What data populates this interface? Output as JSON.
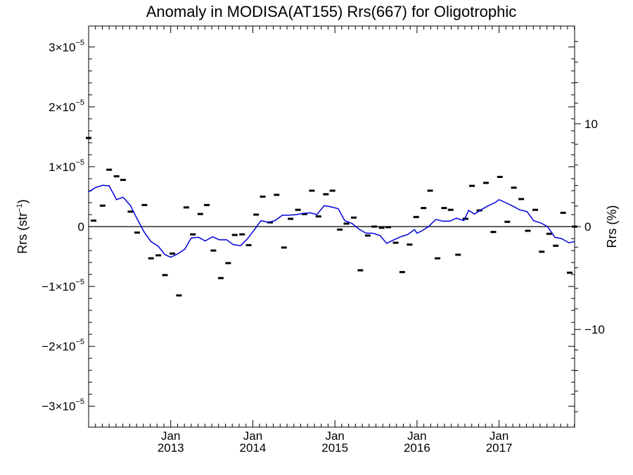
{
  "chart_data": {
    "type": "scatter",
    "title": "Anomaly in MODISA(AT155) Rrs(667) for Oligotrophic",
    "ylabel_left": {
      "base": "Rrs (str",
      "sup": "−1",
      "close": ")"
    },
    "ylabel_right": "Rrs (%)",
    "xlim": [
      2012.0,
      2017.92
    ],
    "ylim_left": [
      -3.35e-05,
      3.35e-05
    ],
    "ylim_right": [
      -19.5,
      19.5
    ],
    "x_ticks": [
      {
        "x": 2013.0,
        "month": "Jan",
        "year": "2013"
      },
      {
        "x": 2014.0,
        "month": "Jan",
        "year": "2014"
      },
      {
        "x": 2015.0,
        "month": "Jan",
        "year": "2015"
      },
      {
        "x": 2016.0,
        "month": "Jan",
        "year": "2016"
      },
      {
        "x": 2017.0,
        "month": "Jan",
        "year": "2017"
      }
    ],
    "y_ticks_left": [
      {
        "value": 3e-05,
        "mantissa": "3×10",
        "exp": "−5"
      },
      {
        "value": 2e-05,
        "mantissa": "2×10",
        "exp": "−5"
      },
      {
        "value": 1e-05,
        "mantissa": "1×10",
        "exp": "−5"
      },
      {
        "value": 0,
        "mantissa": "0",
        "exp": ""
      },
      {
        "value": -1e-05,
        "mantissa": "−1×10",
        "exp": "−5"
      },
      {
        "value": -2e-05,
        "mantissa": "−2×10",
        "exp": "−5"
      },
      {
        "value": -3e-05,
        "mantissa": "−3×10",
        "exp": "−5"
      }
    ],
    "y_ticks_right": [
      {
        "value": 10,
        "label": "10"
      },
      {
        "value": 0,
        "label": "0"
      },
      {
        "value": -10,
        "label": "−10"
      }
    ],
    "zero_line": 0,
    "series": [
      {
        "kind": "points",
        "color": "#000000",
        "x": [
          2012.0,
          2012.06,
          2012.17,
          2012.25,
          2012.34,
          2012.42,
          2012.51,
          2012.59,
          2012.68,
          2012.76,
          2012.85,
          2012.93,
          2013.02,
          2013.1,
          2013.19,
          2013.27,
          2013.36,
          2013.44,
          2013.52,
          2013.61,
          2013.7,
          2013.78,
          2013.87,
          2013.95,
          2014.04,
          2014.12,
          2014.21,
          2014.29,
          2014.38,
          2014.46,
          2014.55,
          2014.63,
          2014.72,
          2014.8,
          2014.89,
          2014.97,
          2015.06,
          2015.14,
          2015.23,
          2015.31,
          2015.4,
          2015.48,
          2015.57,
          2015.65,
          2015.74,
          2015.82,
          2015.91,
          2015.99,
          2016.08,
          2016.16,
          2016.25,
          2016.33,
          2016.41,
          2016.5,
          2016.59,
          2016.67,
          2016.76,
          2016.84,
          2016.93,
          2017.01,
          2017.1,
          2017.18,
          2017.27,
          2017.35,
          2017.44,
          2017.52,
          2017.61,
          2017.69,
          2017.78,
          2017.86,
          2017.92
        ],
        "y": [
          1.48e-05,
          1e-06,
          3.5e-06,
          9.5e-06,
          8.4e-06,
          7.8e-06,
          2.5e-06,
          -1e-06,
          3.6e-06,
          -5.3e-06,
          -4.8e-06,
          -8.1e-06,
          -4.5e-06,
          -1.15e-05,
          3.2e-06,
          -1.3e-06,
          2.1e-06,
          3.6e-06,
          -4e-06,
          -8.6e-06,
          -6.1e-06,
          -1.4e-06,
          -1.3e-06,
          -3.1e-06,
          2e-06,
          5e-06,
          7e-07,
          5.3e-06,
          -3.5e-06,
          1.3e-06,
          2.8e-06,
          2.1e-06,
          6e-06,
          1.7e-06,
          5.4e-06,
          6e-06,
          -5e-07,
          5e-07,
          1.5e-06,
          -7.3e-06,
          -1.5e-06,
          0.0,
          -2e-07,
          -1e-07,
          -2.7e-06,
          -7.6e-06,
          -3e-06,
          1.6e-06,
          3.1e-06,
          6e-06,
          -5.3e-06,
          3.1e-06,
          2.8e-06,
          -4.7e-06,
          1.3e-06,
          6.8e-06,
          2.7e-06,
          7.3e-06,
          -9e-07,
          8.3e-06,
          8e-07,
          6.5e-06,
          4.6e-06,
          -7e-07,
          2.8e-06,
          -4.2e-06,
          -1.2e-06,
          -3.2e-06,
          2.3e-06,
          -7.7e-06,
          0.0
        ]
      },
      {
        "kind": "line",
        "color": "#0000dd",
        "x": [
          2012.0,
          2012.08,
          2012.17,
          2012.25,
          2012.34,
          2012.42,
          2012.51,
          2012.59,
          2012.68,
          2012.76,
          2012.85,
          2012.93,
          2013.0,
          2013.08,
          2013.17,
          2013.25,
          2013.34,
          2013.42,
          2013.51,
          2013.59,
          2013.68,
          2013.76,
          2013.85,
          2013.93,
          2014.02,
          2014.1,
          2014.19,
          2014.27,
          2014.36,
          2014.44,
          2014.53,
          2014.61,
          2014.7,
          2014.78,
          2014.87,
          2014.95,
          2015.04,
          2015.12,
          2015.21,
          2015.29,
          2015.38,
          2015.46,
          2015.55,
          2015.63,
          2015.72,
          2015.8,
          2015.89,
          2015.97,
          2016.0,
          2016.06,
          2016.14,
          2016.23,
          2016.31,
          2016.4,
          2016.48,
          2016.57,
          2016.63,
          2016.7,
          2016.78,
          2016.87,
          2016.95,
          2017.0,
          2017.08,
          2017.17,
          2017.25,
          2017.34,
          2017.42,
          2017.51,
          2017.59,
          2017.68,
          2017.76,
          2017.85,
          2017.92
        ],
        "y": [
          5.8e-06,
          6.5e-06,
          6.9e-06,
          6.8e-06,
          4.5e-06,
          4.9e-06,
          3.5e-06,
          1.3e-06,
          -1e-06,
          -2.5e-06,
          -3.3e-06,
          -4.7e-06,
          -5.1e-06,
          -4.6e-06,
          -3.8e-06,
          -1.9e-06,
          -1.8e-06,
          -2.4e-06,
          -1.7e-06,
          -2.2e-06,
          -2.2e-06,
          -3e-06,
          -3.2e-06,
          -2.1e-06,
          -5e-07,
          1e-06,
          7e-07,
          1e-06,
          1.9e-06,
          1.9e-06,
          2e-06,
          2.2e-06,
          2.3e-06,
          2e-06,
          3.5e-06,
          3.3e-06,
          3e-06,
          1e-06,
          5e-07,
          -4e-07,
          -1.1e-06,
          -1.1e-06,
          -1.5e-06,
          -2.8e-06,
          -2.2e-06,
          -1.7e-06,
          -1.3e-06,
          -5e-07,
          -1.1e-06,
          -7e-07,
          0.0,
          1.2e-06,
          9e-07,
          9e-07,
          1.4e-06,
          1e-06,
          2.7e-06,
          2.1e-06,
          2.8e-06,
          3.5e-06,
          4e-06,
          4.5e-06,
          4e-06,
          3.4e-06,
          2.8e-06,
          2.5e-06,
          1e-06,
          6e-07,
          0.0,
          -1.8e-06,
          -2e-06,
          -2.7e-06,
          -2.5e-06
        ]
      }
    ]
  }
}
